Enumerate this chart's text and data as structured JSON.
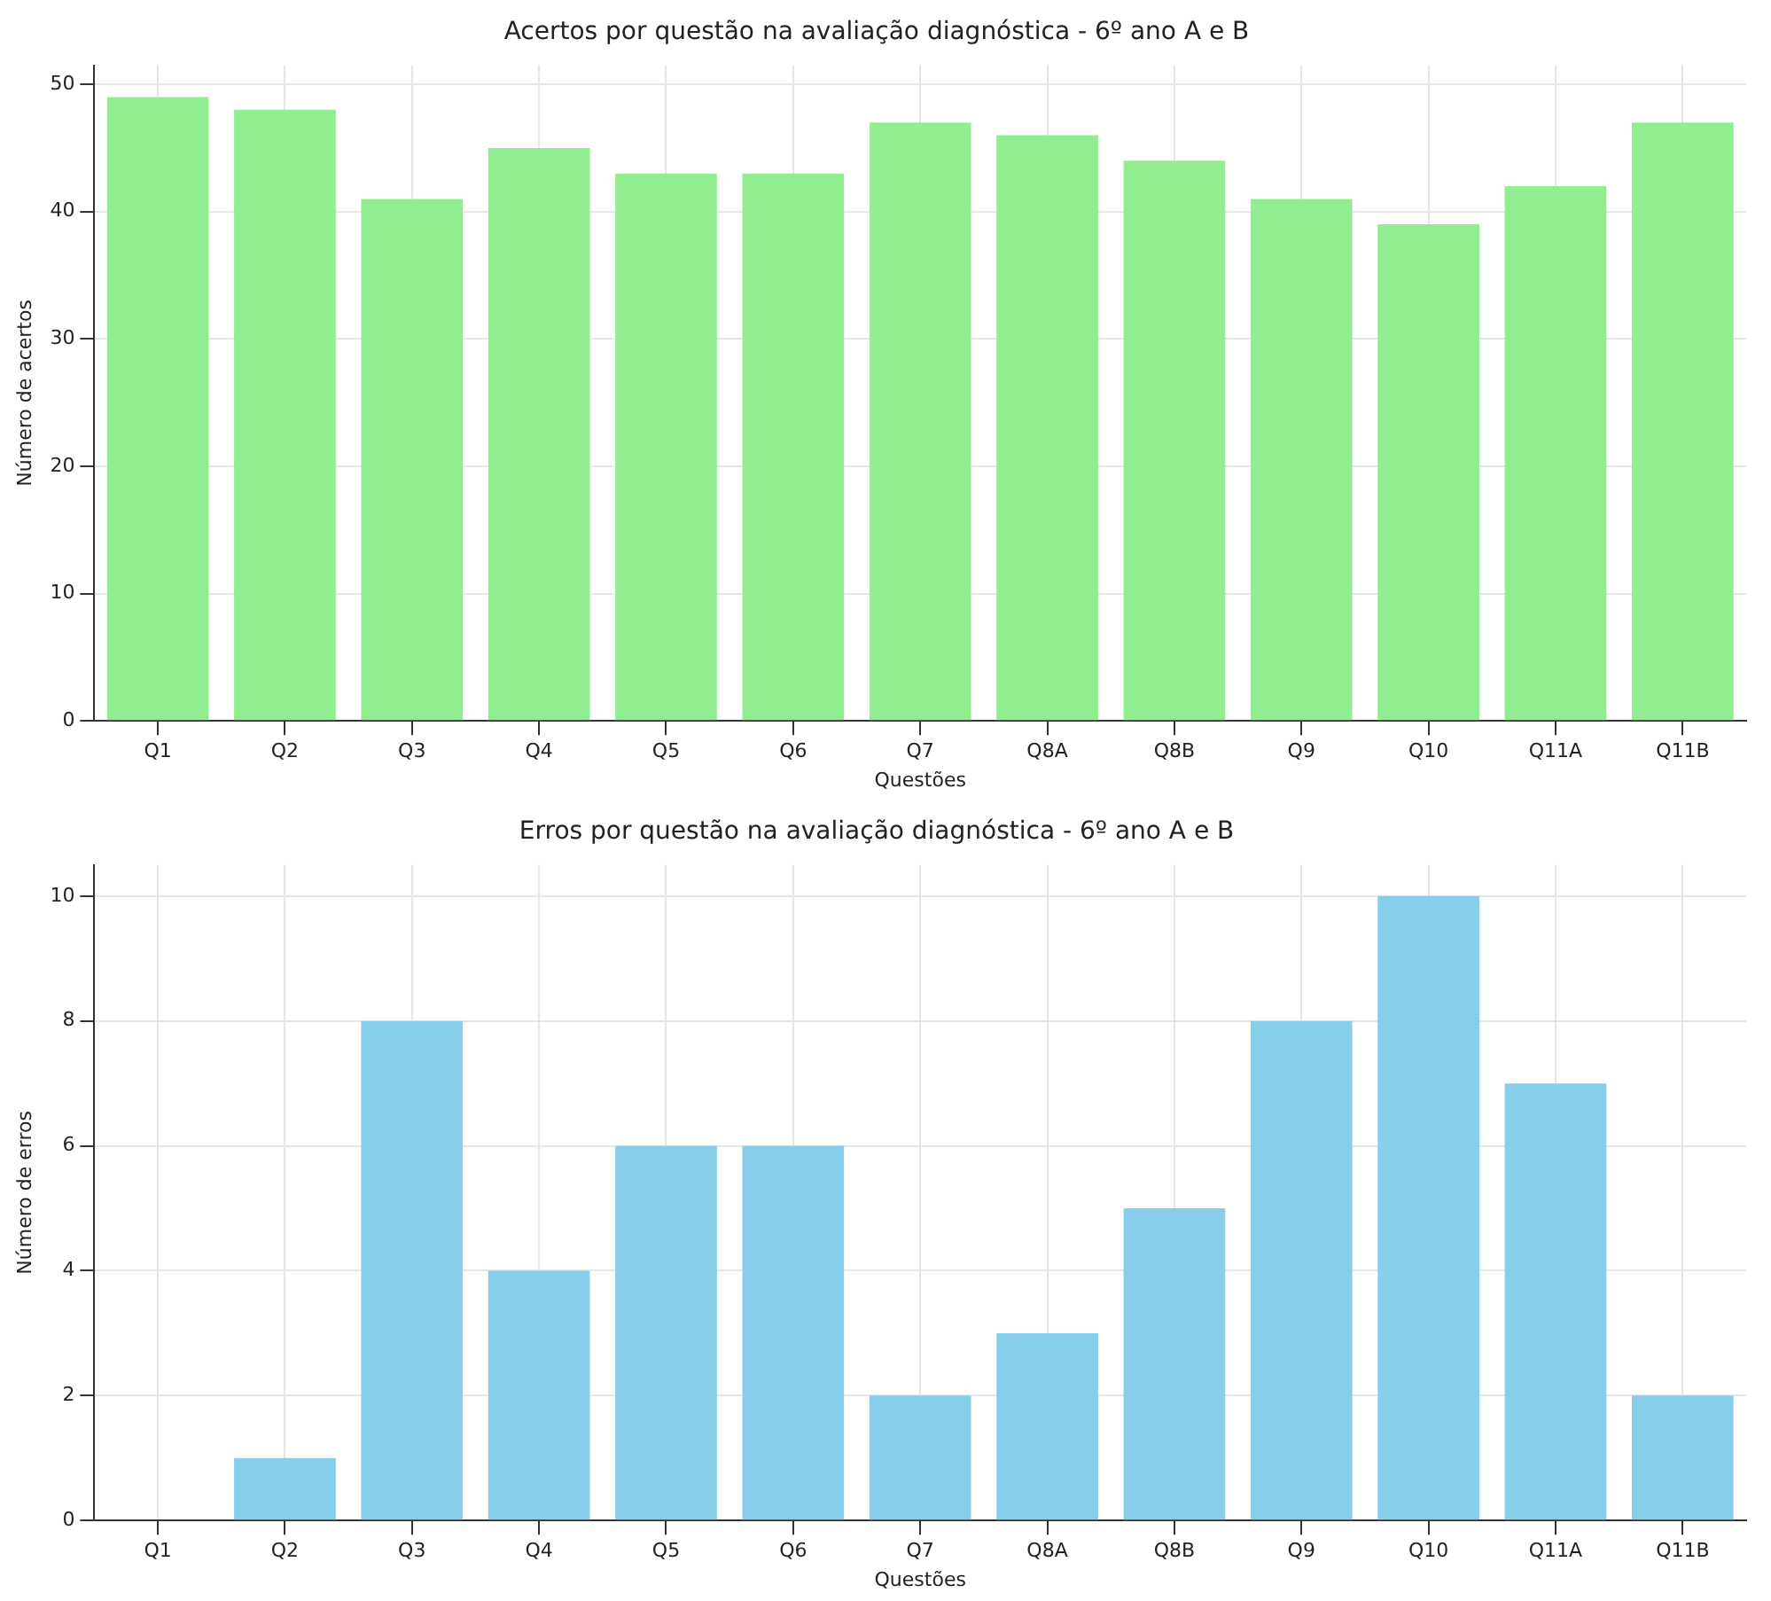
{
  "chart_data": [
    {
      "type": "bar",
      "title": "Acertos por questão na avaliação diagnóstica - 6º ano A e B",
      "xlabel": "Questões",
      "ylabel": "Número de acertos",
      "categories": [
        "Q1",
        "Q2",
        "Q3",
        "Q4",
        "Q5",
        "Q6",
        "Q7",
        "Q8A",
        "Q8B",
        "Q9",
        "Q10",
        "Q11A",
        "Q11B"
      ],
      "values": [
        49,
        48,
        41,
        45,
        43,
        43,
        47,
        46,
        44,
        41,
        39,
        42,
        47
      ],
      "color": "#90ee90",
      "ylim": [
        0,
        51.5
      ],
      "yticks": [
        0,
        10,
        20,
        30,
        40,
        50
      ],
      "grid": true
    },
    {
      "type": "bar",
      "title": "Erros por questão na avaliação diagnóstica - 6º ano A e B",
      "xlabel": "Questões",
      "ylabel": "Número de erros",
      "categories": [
        "Q1",
        "Q2",
        "Q3",
        "Q4",
        "Q5",
        "Q6",
        "Q7",
        "Q8A",
        "Q8B",
        "Q9",
        "Q10",
        "Q11A",
        "Q11B"
      ],
      "values": [
        0,
        1,
        8,
        4,
        6,
        6,
        2,
        3,
        5,
        8,
        10,
        7,
        2
      ],
      "color": "#87ceeb",
      "ylim": [
        0,
        10.5
      ],
      "yticks": [
        0,
        2,
        4,
        6,
        8,
        10
      ],
      "grid": true
    }
  ]
}
